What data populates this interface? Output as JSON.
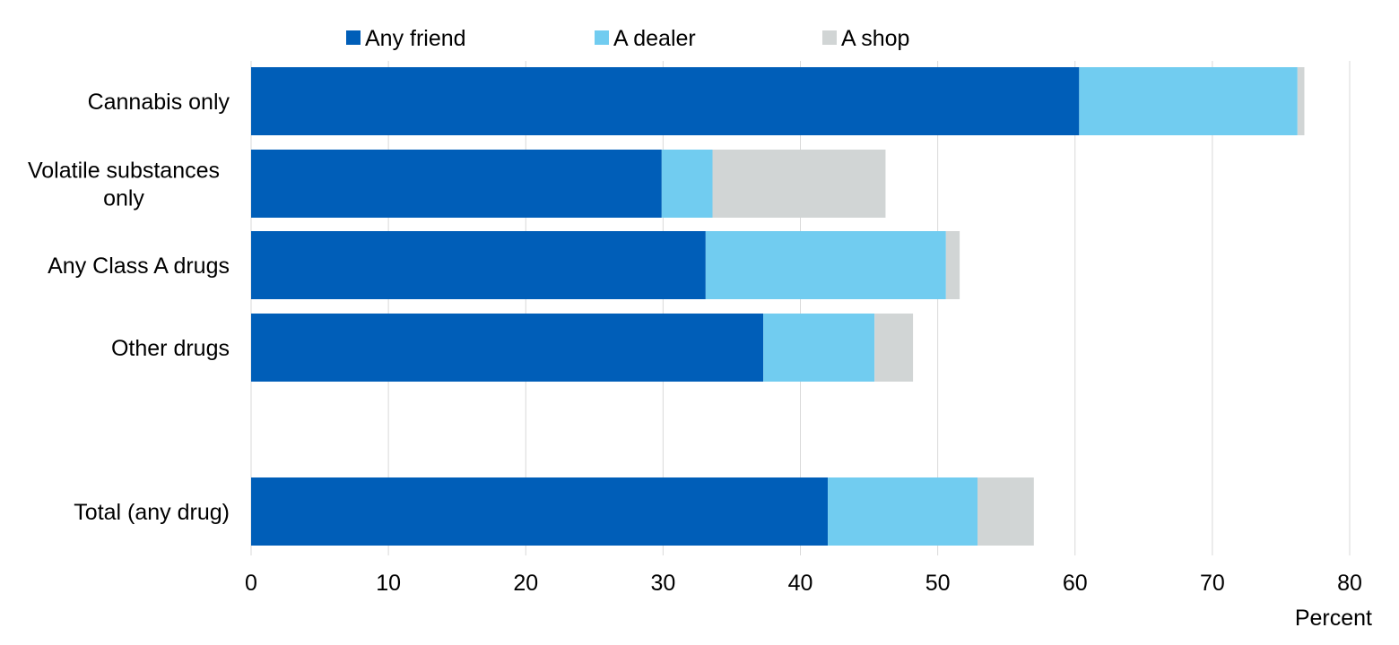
{
  "chart_data": {
    "type": "bar",
    "orientation": "horizontal",
    "stacked": true,
    "categories": [
      [
        "Cannabis only"
      ],
      [
        "Volatile substances",
        "only"
      ],
      [
        "Any Class A drugs"
      ],
      [
        "Other drugs"
      ],
      [],
      [
        "Total (any drug)"
      ]
    ],
    "series": [
      {
        "name": "Any friend",
        "color": "#005EB8",
        "values": [
          60.3,
          29.9,
          33.1,
          37.3,
          null,
          42.0
        ]
      },
      {
        "name": "A dealer",
        "color": "#71CCF0",
        "values": [
          15.9,
          3.7,
          17.5,
          8.1,
          null,
          10.9
        ]
      },
      {
        "name": "A shop",
        "color": "#D1D5D5",
        "values": [
          0.5,
          12.6,
          1.0,
          2.8,
          null,
          4.1
        ]
      }
    ],
    "xlim": [
      0,
      80
    ],
    "xticks": [
      0,
      10,
      20,
      30,
      40,
      50,
      60,
      70,
      80
    ],
    "xlabel": "Percent",
    "ylabel": "",
    "title": "",
    "grid": "vertical",
    "legend": "top"
  }
}
